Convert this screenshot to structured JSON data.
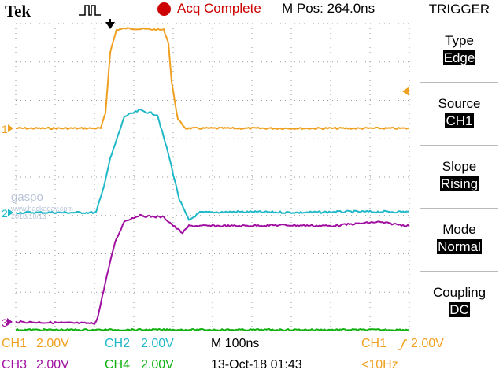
{
  "header": {
    "brand": "Tek",
    "acquisition_status": "Acq Complete",
    "main_position": "M Pos: 264.0ns"
  },
  "trigger_menu": {
    "title": "TRIGGER",
    "items": [
      {
        "label": "Type",
        "value": "Edge"
      },
      {
        "label": "Source",
        "value": "CH1"
      },
      {
        "label": "Slope",
        "value": "Rising"
      },
      {
        "label": "Mode",
        "value": "Normal"
      },
      {
        "label": "Coupling",
        "value": "DC"
      }
    ]
  },
  "channel_markers": {
    "ch1": "1",
    "ch2": "2",
    "ch3": "3"
  },
  "watermark": {
    "line1": "gaspo",
    "line2": "www.hackaday.com",
    "line3": "2018/10/13"
  },
  "status_bar": {
    "ch1_scale": {
      "channel": "CH1",
      "value": "2.00V"
    },
    "ch2_scale": {
      "channel": "CH2",
      "value": "2.00V"
    },
    "ch3_scale": {
      "channel": "CH3",
      "value": "2.00V"
    },
    "ch4_scale": {
      "channel": "CH4",
      "value": "2.00V"
    },
    "timebase": "M 100ns",
    "datetime": "13-Oct-18 01:43",
    "trigger_readout": {
      "source": "CH1",
      "level": "2.00V"
    },
    "trigger_frequency": "<10Hz"
  },
  "colors": {
    "ch1": "#f0a020",
    "ch2": "#20b8c8",
    "ch3": "#a010a0",
    "ch4": "#10b010",
    "acq_indicator": "#cc0000",
    "background": "#ffffff"
  }
}
